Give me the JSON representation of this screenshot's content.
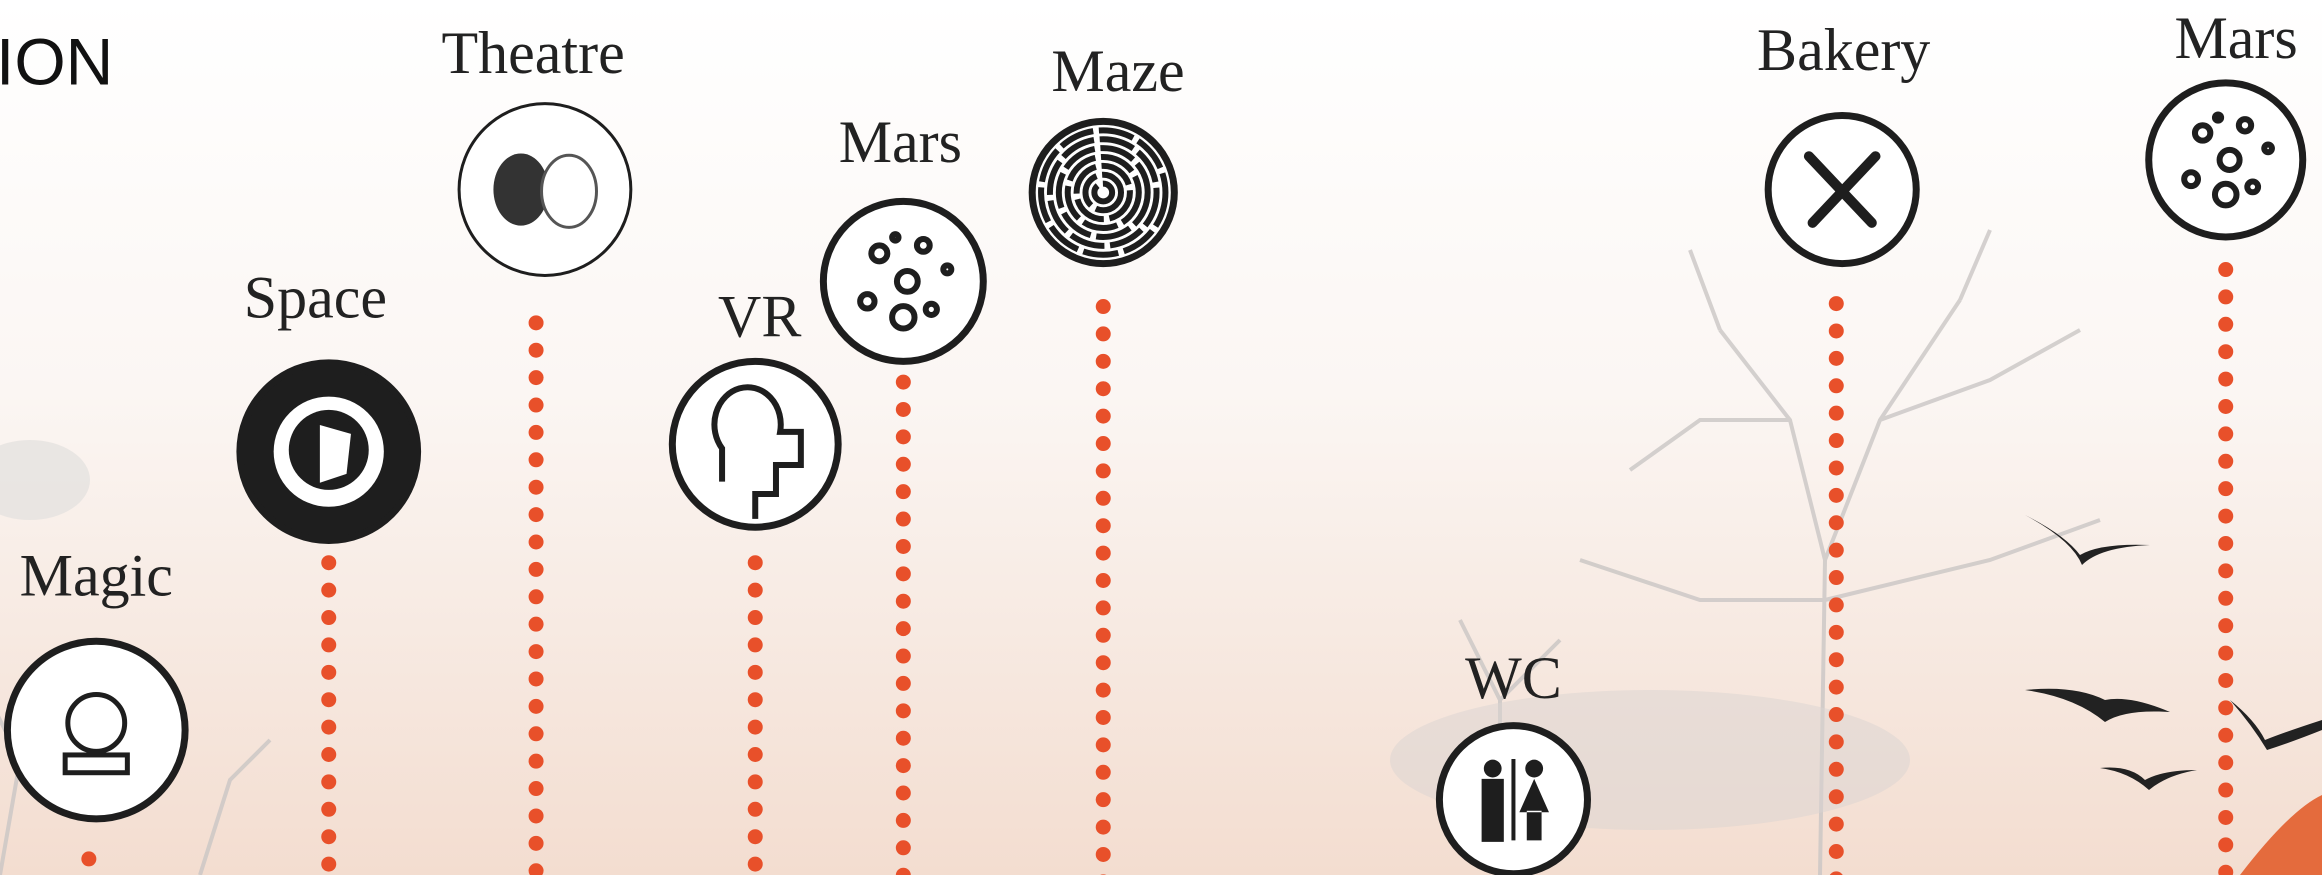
{
  "header": {
    "title": "ION"
  },
  "pins": [
    {
      "label": "Magic"
    },
    {
      "label": "Space"
    },
    {
      "label": "Theatre"
    },
    {
      "label": "VR"
    },
    {
      "label": "Mars"
    },
    {
      "label": "Maze"
    },
    {
      "label": "WC"
    },
    {
      "label": "Bakery"
    },
    {
      "label": "Mars"
    }
  ]
}
